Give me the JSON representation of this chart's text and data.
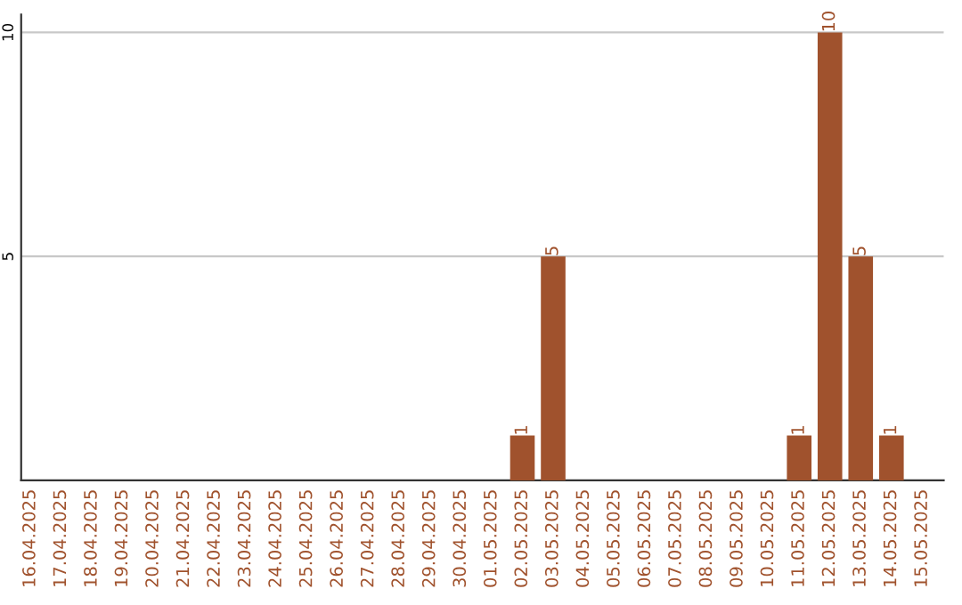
{
  "chart_data": {
    "type": "bar",
    "categories": [
      "16.04.2025",
      "17.04.2025",
      "18.04.2025",
      "19.04.2025",
      "20.04.2025",
      "21.04.2025",
      "22.04.2025",
      "23.04.2025",
      "24.04.2025",
      "25.04.2025",
      "26.04.2025",
      "27.04.2025",
      "28.04.2025",
      "29.04.2025",
      "30.04.2025",
      "01.05.2025",
      "02.05.2025",
      "03.05.2025",
      "04.05.2025",
      "05.05.2025",
      "06.05.2025",
      "07.05.2025",
      "08.05.2025",
      "09.05.2025",
      "10.05.2025",
      "11.05.2025",
      "12.05.2025",
      "13.05.2025",
      "14.05.2025",
      "15.05.2025"
    ],
    "values": [
      0,
      0,
      0,
      0,
      0,
      0,
      0,
      0,
      0,
      0,
      0,
      0,
      0,
      0,
      0,
      0,
      1,
      5,
      0,
      0,
      0,
      0,
      0,
      0,
      0,
      1,
      10,
      5,
      1,
      0
    ],
    "value_labels": [
      null,
      null,
      null,
      null,
      null,
      null,
      null,
      null,
      null,
      null,
      null,
      null,
      null,
      null,
      null,
      null,
      "1",
      "5",
      null,
      null,
      null,
      null,
      null,
      null,
      null,
      "1",
      "10",
      "5",
      "1",
      null
    ],
    "color": "#a0522d",
    "ylim": [
      0,
      10.4
    ],
    "yticks": [
      5,
      10
    ],
    "grid": "y",
    "legend": false
  }
}
